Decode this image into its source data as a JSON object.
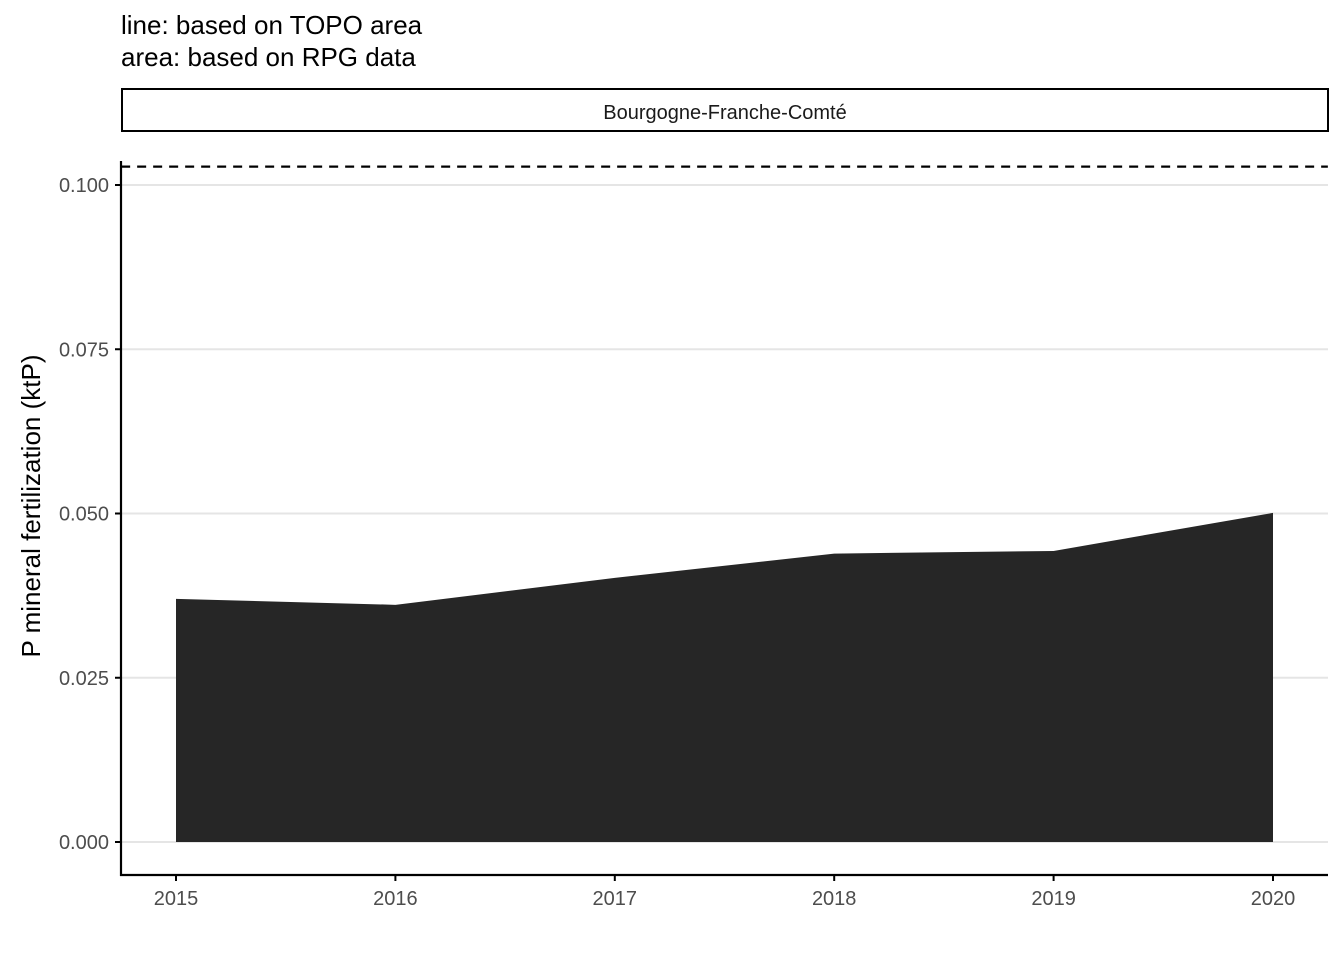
{
  "subtitle_lines": [
    "line: based on TOPO area",
    "area: based on RPG data"
  ],
  "colors": {
    "area_fill": "#262626",
    "grid": "#e5e5e5",
    "dashed_line": "#000000",
    "axis": "#000000",
    "tick_text": "#4d4d4d"
  },
  "chart_data": {
    "type": "area",
    "title": "",
    "facet_label": "Bourgogne-Franche-Comté",
    "xlabel": "",
    "ylabel": "P mineral fertilization (ktP)",
    "x": [
      2015,
      2016,
      2017,
      2018,
      2019,
      2020
    ],
    "series": [
      {
        "name": "",
        "type": "area",
        "values": [
          0.037,
          0.0361,
          0.0402,
          0.0439,
          0.0443,
          0.0501
        ]
      },
      {
        "name": "",
        "type": "line",
        "linestyle": "dashed",
        "values": [
          0.1028,
          0.1028,
          0.1028,
          0.1028,
          0.1028,
          0.1028
        ]
      }
    ],
    "y_ticks": [
      "0.000",
      "0.025",
      "0.050",
      "0.075",
      "0.100"
    ],
    "x_ticks": [
      "2015",
      "2016",
      "2017",
      "2018",
      "2019",
      "2020"
    ],
    "ylim": [
      -0.005,
      0.108
    ],
    "xlim": [
      2014.75,
      2020.25
    ],
    "grid": "horizontal major",
    "legend": "none"
  }
}
